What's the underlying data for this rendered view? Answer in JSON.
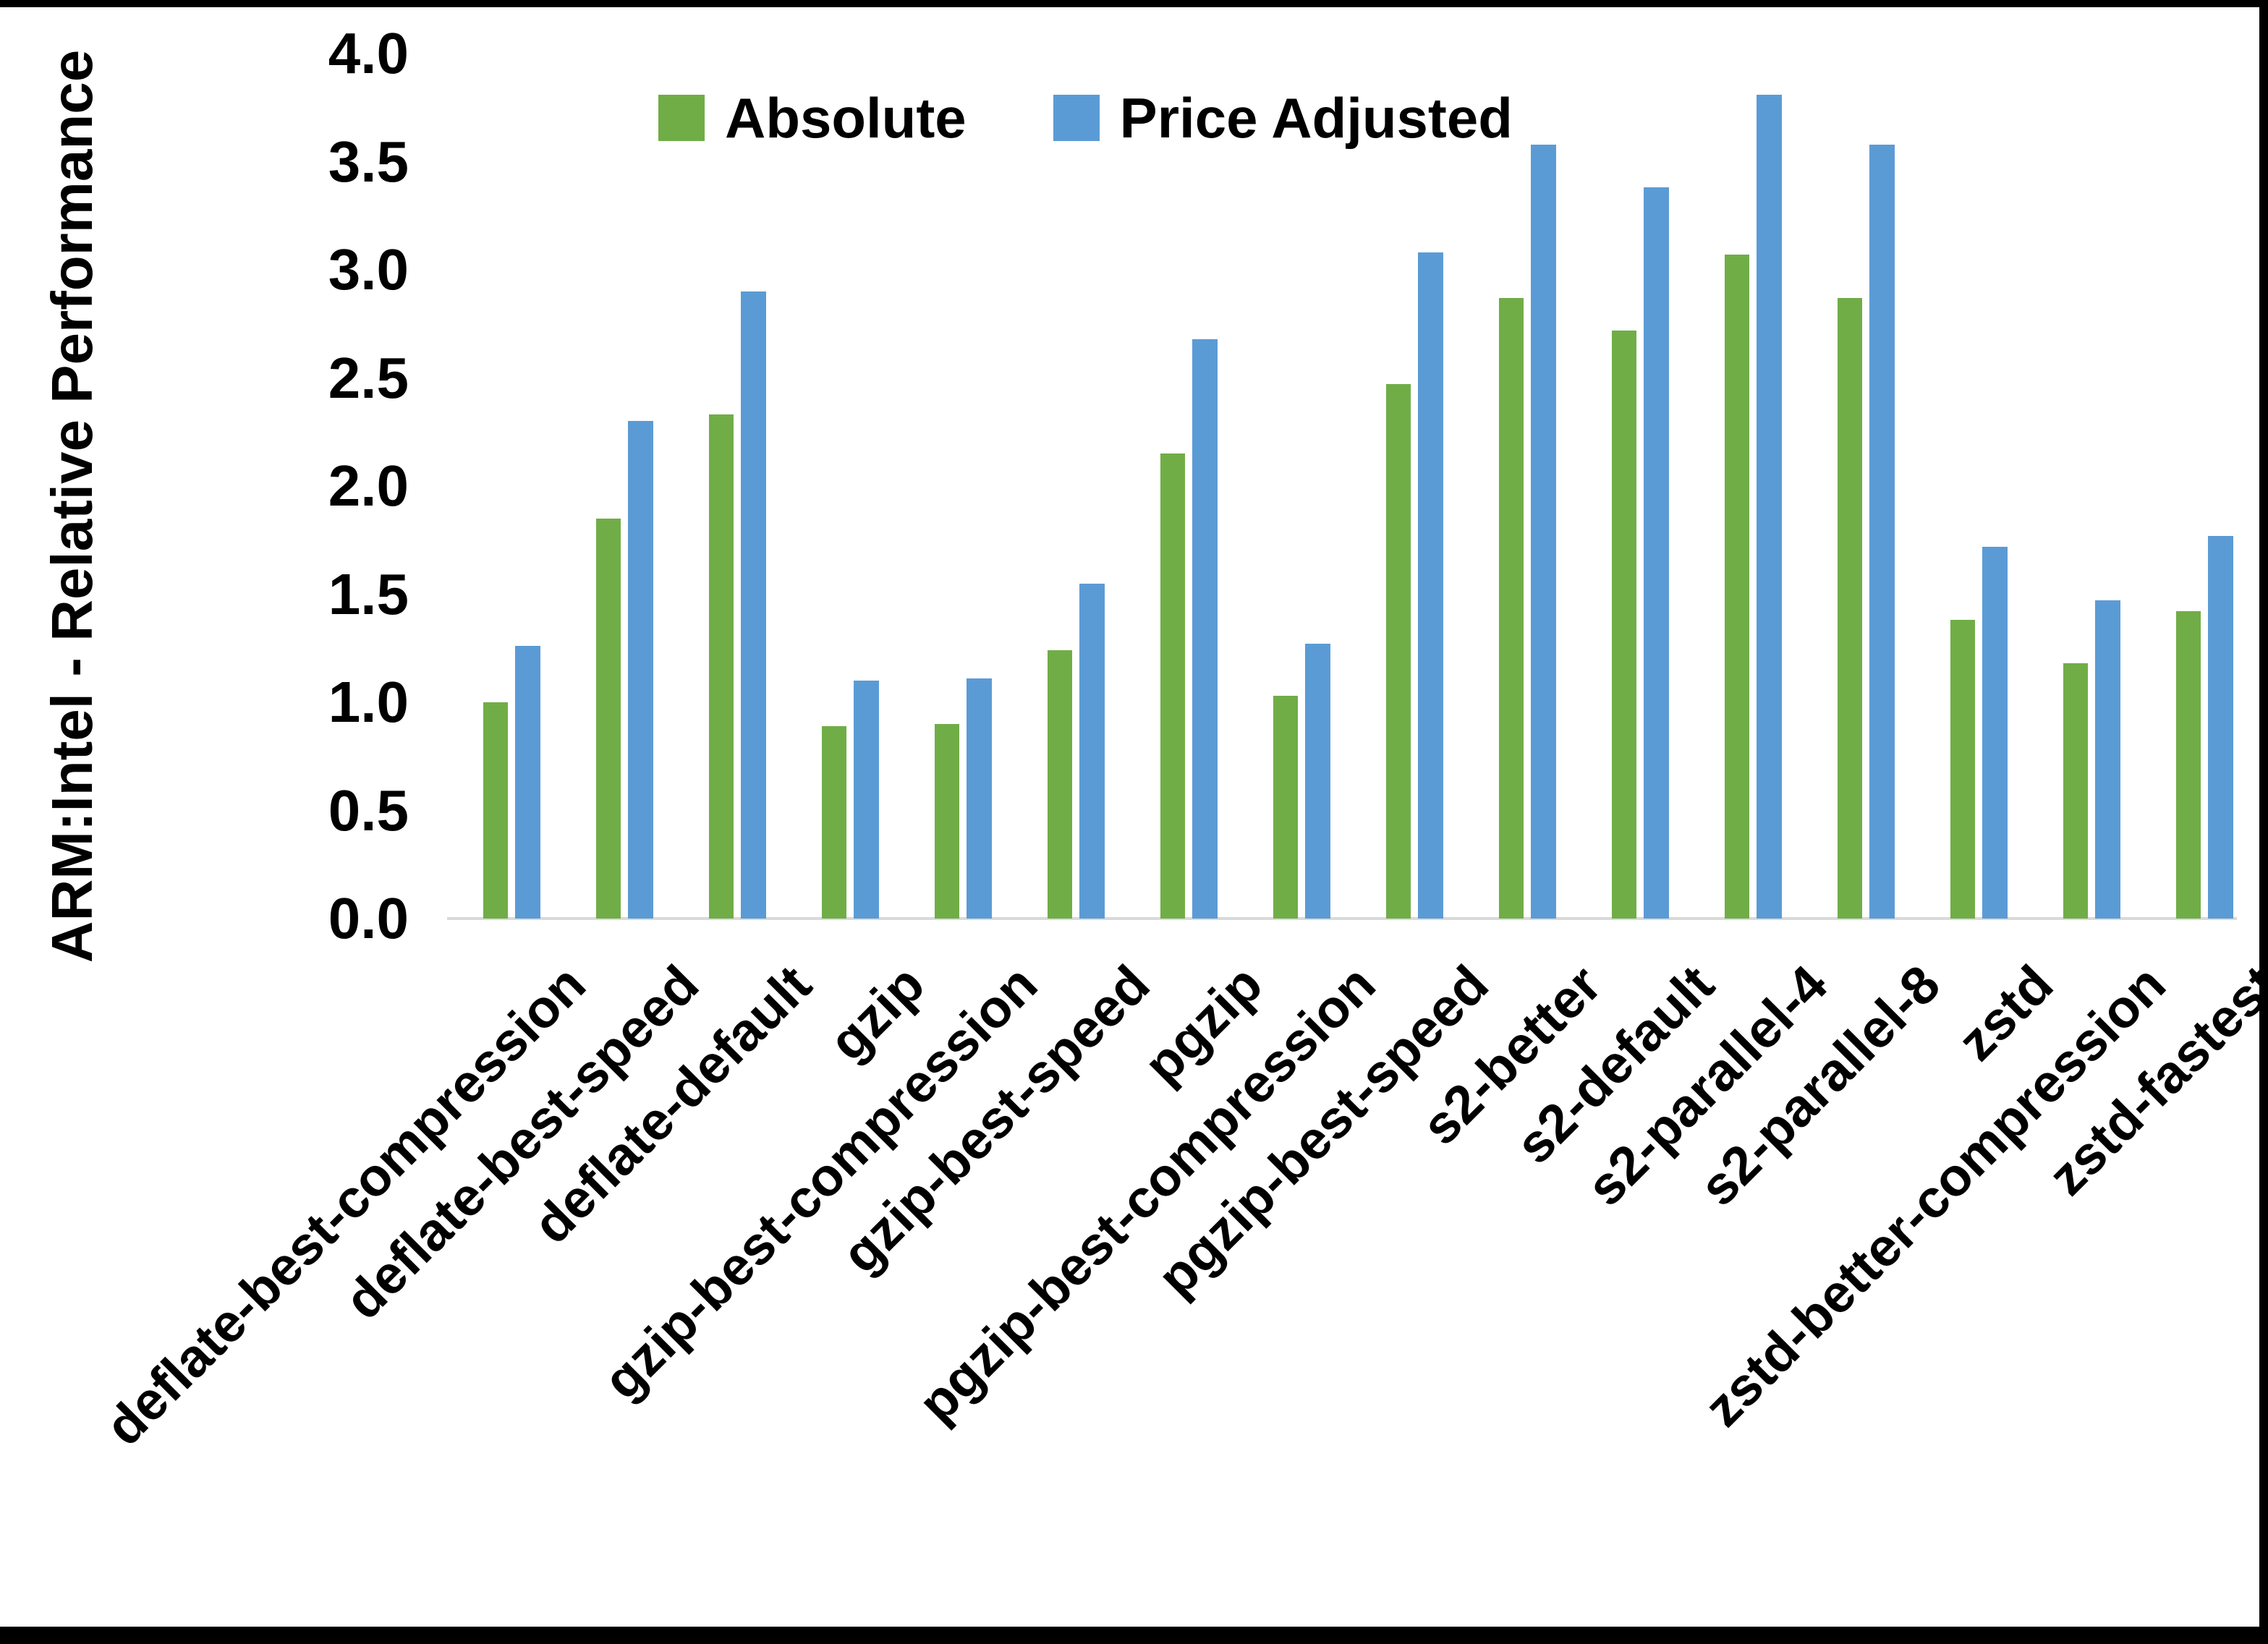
{
  "figure": {
    "background": "#FFFFFF",
    "frame_color": "#000000",
    "axis_line_color": "#D9D9D9"
  },
  "legend": {
    "items": [
      {
        "label": "Absolute",
        "color": "#70AD47"
      },
      {
        "label": "Price Adjusted",
        "color": "#5B9BD5"
      }
    ]
  },
  "y_axis": {
    "title": "ARM:Intel - Relative Performance",
    "tick_labels": [
      "0.0",
      "0.5",
      "1.0",
      "1.5",
      "2.0",
      "2.5",
      "3.0",
      "3.5",
      "4.0"
    ]
  },
  "chart_data": {
    "type": "bar",
    "title": "",
    "xlabel": "",
    "ylabel": "ARM:Intel - Relative Performance",
    "ylim": [
      0,
      4.0
    ],
    "ytick_step": 0.5,
    "grid": false,
    "legend_position": "top-center",
    "x_tick_rotation_deg": -45,
    "categories": [
      "deflate-best-compression",
      "deflate-best-speed",
      "deflate-default",
      "gzip",
      "gzip-best-compression",
      "gzip-best-speed",
      "pgzip",
      "pgzip-best-compression",
      "pgzip-best-speed",
      "s2-better",
      "s2-default",
      "s2-parallel-4",
      "s2-parallel-8",
      "zstd",
      "zstd-better-compression",
      "zstd-fastest"
    ],
    "series": [
      {
        "name": "Absolute",
        "color": "#70AD47",
        "values": [
          1.0,
          1.85,
          2.33,
          0.89,
          0.9,
          1.24,
          2.15,
          1.03,
          2.47,
          2.87,
          2.72,
          3.07,
          2.87,
          1.38,
          1.18,
          1.42
        ]
      },
      {
        "name": "Price Adjusted",
        "color": "#5B9BD5",
        "values": [
          1.26,
          2.3,
          2.9,
          1.1,
          1.11,
          1.55,
          2.68,
          1.27,
          3.08,
          3.58,
          3.38,
          3.81,
          3.58,
          1.72,
          1.47,
          1.77
        ]
      }
    ]
  }
}
